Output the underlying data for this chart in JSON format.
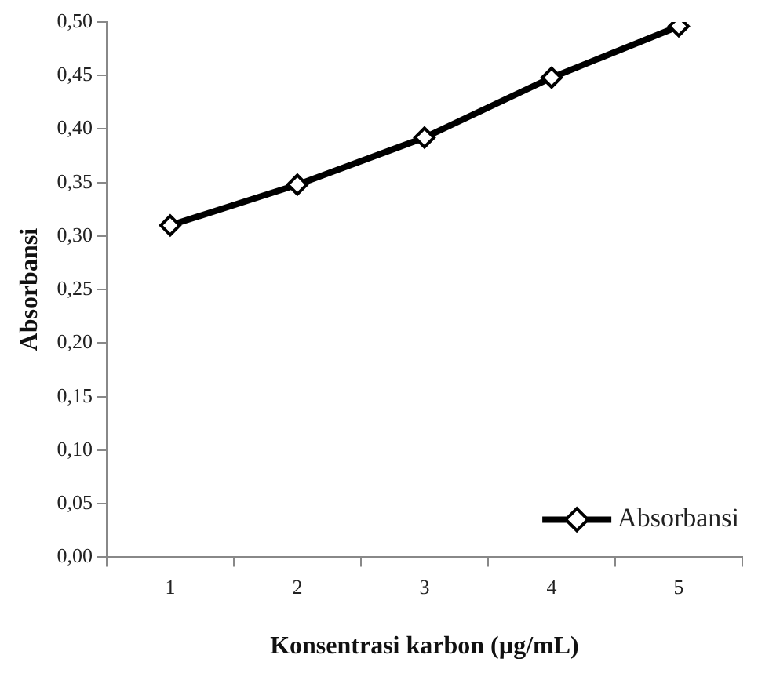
{
  "chart_data": {
    "type": "line",
    "xlabel": "Konsentrasi karbon (µg/mL)",
    "ylabel": "Absorbansi",
    "categories": [
      "1",
      "2",
      "3",
      "4",
      "5"
    ],
    "series": [
      {
        "name": "Absorbansi",
        "color": "#000000",
        "values": [
          0.31,
          0.348,
          0.392,
          0.448,
          0.496
        ]
      }
    ],
    "ylim": [
      0,
      0.5
    ],
    "yticks": [
      {
        "value": 0,
        "label": "0,00"
      },
      {
        "value": 0.05,
        "label": "0,05"
      },
      {
        "value": 0.1,
        "label": "0,10"
      },
      {
        "value": 0.15,
        "label": "0,15"
      },
      {
        "value": 0.2,
        "label": "0,20"
      },
      {
        "value": 0.25,
        "label": "0,25"
      },
      {
        "value": 0.3,
        "label": "0,30"
      },
      {
        "value": 0.35,
        "label": "0,35"
      },
      {
        "value": 0.4,
        "label": "0,40"
      },
      {
        "value": 0.45,
        "label": "0,45"
      },
      {
        "value": 0.5,
        "label": "0,50"
      }
    ],
    "grid": false,
    "legend": "bottom right",
    "marker": "diamond",
    "line_style": "solid"
  }
}
